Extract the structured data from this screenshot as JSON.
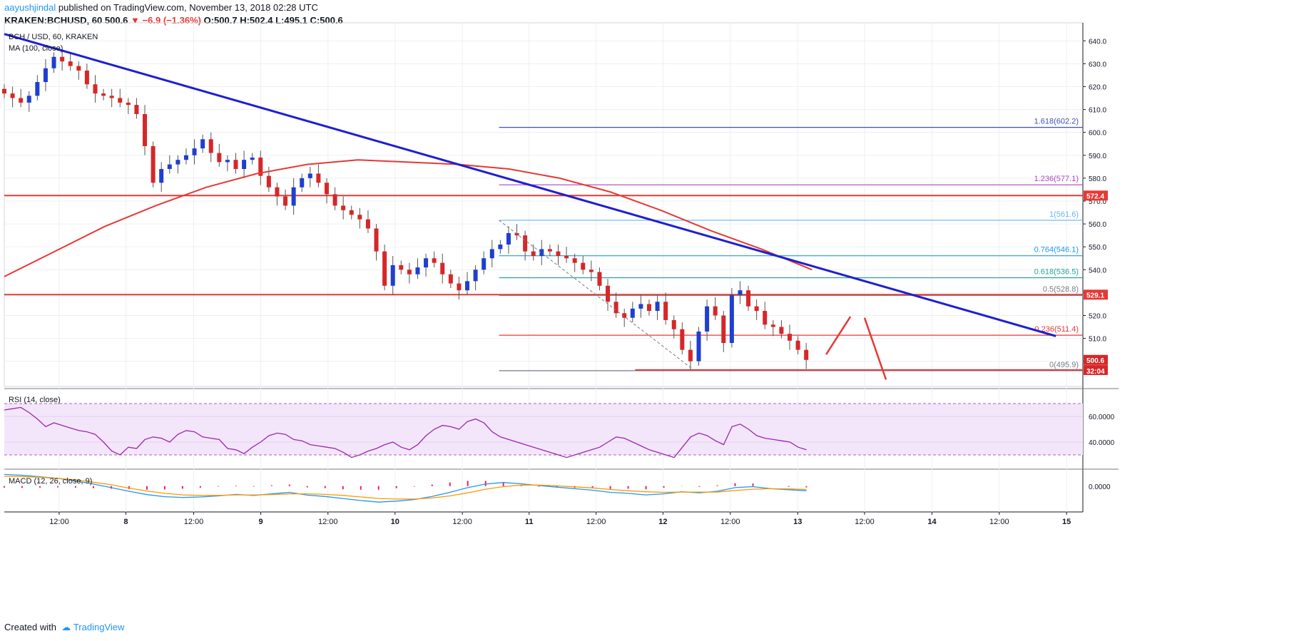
{
  "header": {
    "author": "aayushjindal",
    "published_text": " published on TradingView.com, November 13, 2018 02:28 UTC",
    "symbol": "KRAKEN:BCHUSD, 60",
    "last": "500.6",
    "change": "−6.9 (−1.36%)",
    "open_label": "O:",
    "open": "500.7",
    "high_label": "H:",
    "high": "502.4",
    "low_label": "L:",
    "low": "495.1",
    "close_label": "C:",
    "close": "500.6"
  },
  "footer": {
    "created_with": "Created with",
    "brand": "TradingView"
  },
  "colors": {
    "up": "#1e3fd0",
    "down": "#d62728",
    "trendline": "#1f1fd1",
    "ma": "#e53935",
    "resistance": "#e53935",
    "rsi_line": "#9c27b0",
    "rsi_band": "#f3e6fa",
    "macd": "#2196f3",
    "signal": "#ff9800",
    "hist": "#e91e63"
  },
  "chart_data": [
    {
      "type": "candlestick",
      "title": "BCH / USD, 60, KRAKEN",
      "indicator_label": "MA (100, close)",
      "ylim": [
        489,
        646
      ],
      "y_ticks": [
        500,
        510,
        520,
        530,
        540,
        550,
        560,
        570,
        580,
        590,
        600,
        610,
        620,
        630,
        640
      ],
      "x_ticks": [
        "12:00",
        "8",
        "12:00",
        "9",
        "12:00",
        "10",
        "12:00",
        "11",
        "12:00",
        "12",
        "12:00",
        "13",
        "12:00",
        "14",
        "12:00",
        "15"
      ],
      "close_path": [
        617,
        615,
        613,
        616,
        622,
        628,
        633,
        631,
        629,
        627,
        621,
        617,
        616,
        615,
        613,
        612,
        608,
        594,
        578,
        584,
        586,
        588,
        590,
        593,
        597,
        591,
        587,
        588,
        584,
        588,
        589,
        581,
        576,
        572,
        568,
        576,
        580,
        582,
        578,
        573,
        568,
        566,
        564,
        562,
        558,
        548,
        533,
        542,
        540,
        538,
        541,
        545,
        543,
        538,
        534,
        531,
        535,
        540,
        545,
        549,
        551,
        556,
        555,
        548,
        546,
        549,
        548,
        546,
        545,
        543,
        540,
        539,
        533,
        526,
        521,
        519,
        523,
        525,
        522,
        526,
        518,
        514,
        505,
        500,
        513,
        524,
        520,
        508,
        529,
        531,
        524,
        522,
        516,
        515,
        512,
        509,
        505,
        500.6
      ],
      "ma100_path": [
        537,
        548,
        559,
        568,
        576,
        582,
        586,
        588,
        587,
        586,
        584,
        580,
        574,
        566,
        557,
        549,
        540
      ],
      "trendline": [
        [
          0,
          643
        ],
        [
          97.5,
          511
        ]
      ],
      "fibonacci": [
        {
          "level": "0",
          "value": 495.9
        },
        {
          "level": "0.236",
          "value": 511.4
        },
        {
          "level": "0.5",
          "value": 528.8
        },
        {
          "level": "0.618",
          "value": 536.5
        },
        {
          "level": "0.764",
          "value": 546.1
        },
        {
          "level": "1",
          "value": 561.6
        },
        {
          "level": "1.236",
          "value": 577.1
        },
        {
          "level": "1.618",
          "value": 602.2
        }
      ],
      "horizontal_lines": [
        572.4,
        529.1,
        496.2
      ],
      "price_labels": [
        "572.4",
        "529.1",
        "500.6",
        "32:04",
        "496.2"
      ]
    },
    {
      "type": "line",
      "title": "RSI (14, close)",
      "ylim": [
        20,
        80
      ],
      "band": [
        30,
        70
      ],
      "y_ticks": [
        40,
        60
      ],
      "y_tick_labels": [
        "40.0000",
        "60.0000"
      ],
      "values": [
        65,
        66,
        67,
        63,
        58,
        52,
        55,
        53,
        51,
        49,
        48,
        46,
        40,
        33,
        30,
        36,
        35,
        42,
        44,
        43,
        40,
        46,
        49,
        48,
        44,
        43,
        42,
        35,
        34,
        31,
        36,
        40,
        45,
        47,
        46,
        42,
        41,
        38,
        37,
        36,
        35,
        32,
        28,
        30,
        33,
        35,
        38,
        40,
        36,
        34,
        38,
        45,
        50,
        53,
        52,
        50,
        56,
        58,
        55,
        48,
        44,
        42,
        40,
        38,
        36,
        34,
        32,
        30,
        28,
        30,
        32,
        34,
        36,
        40,
        44,
        43,
        40,
        37,
        34,
        32,
        30,
        28,
        36,
        44,
        47,
        45,
        41,
        38,
        52,
        54,
        50,
        45,
        43,
        42,
        41,
        40,
        36,
        34
      ]
    },
    {
      "type": "line",
      "title": "MACD (12, 26, close, 9)",
      "ylim": [
        -10,
        6
      ],
      "y_ticks": [
        0
      ],
      "y_tick_labels": [
        "0.0000"
      ],
      "series": [
        {
          "values": [
            4.5,
            4.2,
            3.6,
            3.0,
            2.0,
            0.8,
            -0.6,
            -2.0,
            -3.3,
            -4.1,
            -4.4,
            -4.2,
            -3.8,
            -3.2,
            -3.6,
            -3.0,
            -2.4,
            -3.5,
            -4.0,
            -4.8,
            -5.6,
            -6.2,
            -5.8,
            -5.2,
            -4.0,
            -2.4,
            -0.6,
            0.8,
            1.4,
            0.9,
            0.2,
            -0.4,
            -1.0,
            -1.6,
            -2.4,
            -2.8,
            -3.4,
            -3.0,
            -2.2,
            -2.6,
            -2.0,
            -0.6,
            -0.2,
            -1.0,
            -1.4,
            -1.8
          ]
        },
        {
          "values": [
            3.8,
            3.7,
            3.4,
            3.0,
            2.4,
            1.5,
            0.5,
            -0.8,
            -1.9,
            -2.8,
            -3.4,
            -3.6,
            -3.6,
            -3.4,
            -3.4,
            -3.3,
            -3.0,
            -3.0,
            -3.2,
            -3.6,
            -4.2,
            -4.8,
            -5.0,
            -5.0,
            -4.6,
            -3.8,
            -2.6,
            -1.2,
            -0.2,
            0.4,
            0.4,
            0.1,
            -0.3,
            -0.7,
            -1.3,
            -1.8,
            -2.2,
            -2.4,
            -2.3,
            -2.3,
            -2.3,
            -1.7,
            -1.2,
            -1.0,
            -1.1,
            -1.3
          ]
        },
        {
          "values": [
            -0.6,
            -0.7,
            -0.6,
            -0.5,
            -0.6,
            -0.8,
            -1.0,
            -1.2,
            -1.4,
            -1.3,
            -1.0,
            -0.6,
            -0.2,
            0.2,
            -0.2,
            0.3,
            0.6,
            -0.5,
            -0.8,
            -1.2,
            -1.4,
            -1.4,
            -0.8,
            -0.2,
            0.6,
            1.4,
            2.0,
            2.0,
            1.6,
            0.5,
            -0.2,
            -0.5,
            -0.7,
            -0.9,
            -1.1,
            -1.0,
            -1.2,
            -0.6,
            0.1,
            -0.3,
            0.3,
            1.1,
            1.0,
            0.0,
            -0.3,
            -0.5
          ]
        }
      ]
    }
  ]
}
